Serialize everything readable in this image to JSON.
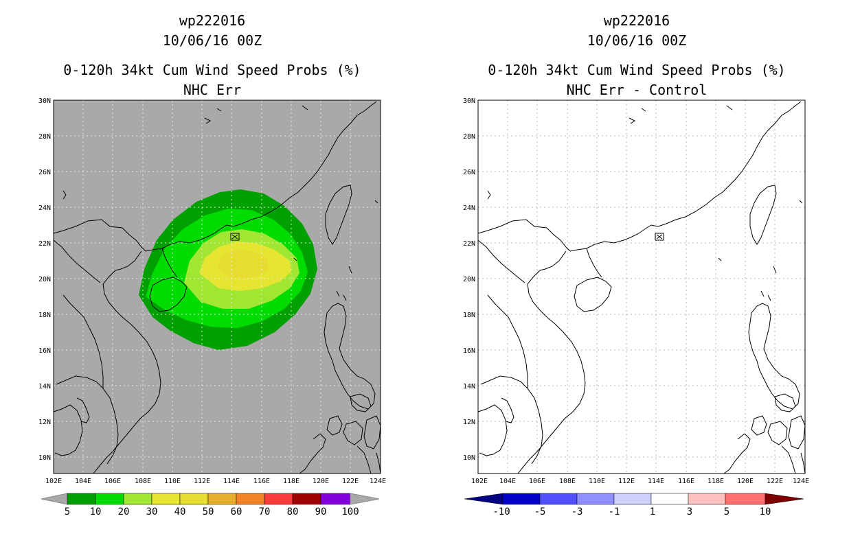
{
  "panels": [
    {
      "id": "left",
      "title_line1": "wp222016",
      "title_line2": "10/06/16 00Z",
      "title_line3": "0-120h 34kt Cum Wind Speed Probs (%)",
      "title_line4": "NHC Err",
      "background": "#a9a9a9",
      "colorbar_labels": [
        "5",
        "10",
        "20",
        "30",
        "40",
        "50",
        "60",
        "70",
        "80",
        "90",
        "100"
      ],
      "colorbar_colors": [
        "#00a000",
        "#00dc00",
        "#a0e632",
        "#e6e632",
        "#e6dc32",
        "#e6af2d",
        "#f08228",
        "#fa3c3c",
        "#a00000",
        "#8200dc"
      ],
      "colorbar_arrow_color": "#a9a9a9"
    },
    {
      "id": "right",
      "title_line1": "wp222016",
      "title_line2": "10/06/16 00Z",
      "title_line3": "0-120h 34kt Cum Wind Speed Probs (%)",
      "title_line4": "NHC Err - Control",
      "background": "#ffffff",
      "colorbar_labels": [
        "-10",
        "-5",
        "-3",
        "-1",
        "1",
        "3",
        "5",
        "10"
      ],
      "colorbar_colors": [
        "#0000c8",
        "#5050ff",
        "#9090ff",
        "#d0d0ff",
        "#ffffff",
        "#ffc0c0",
        "#ff7070",
        "#ff0000",
        "#d00000"
      ],
      "colorbar_arrow_left": "#000080",
      "colorbar_arrow_right": "#800000"
    }
  ],
  "map": {
    "lat_labels": [
      "30N",
      "28N",
      "26N",
      "24N",
      "22N",
      "20N",
      "18N",
      "16N",
      "14N",
      "12N",
      "10N"
    ],
    "lon_labels": [
      "102E",
      "104E",
      "106E",
      "108E",
      "110E",
      "112E",
      "114E",
      "116E",
      "118E",
      "120E",
      "122E",
      "124E"
    ],
    "lat_values": [
      30,
      28,
      26,
      24,
      22,
      20,
      18,
      16,
      14,
      12,
      10
    ],
    "lon_values": [
      102,
      104,
      106,
      108,
      110,
      112,
      114,
      116,
      118,
      120,
      122,
      124
    ],
    "lat_range": [
      9,
      30
    ],
    "lon_range": [
      102,
      124
    ],
    "storm_center_lon": 114.0,
    "storm_center_lat": 22.3
  }
}
